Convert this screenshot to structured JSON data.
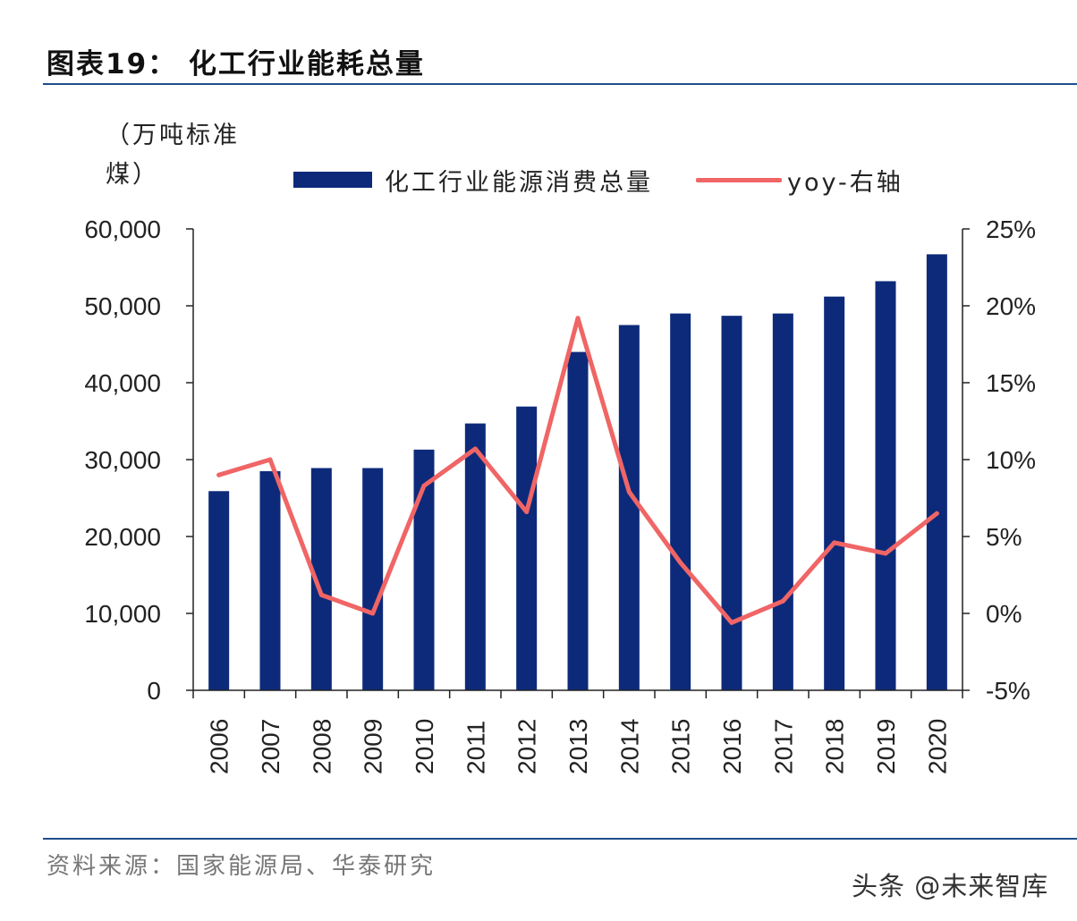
{
  "figure": {
    "title": "图表19： 化工行业能耗总量",
    "unit": "（万吨标准煤）",
    "source": "资料来源：国家能源局、华泰研究",
    "watermark": "头条 @未来智库"
  },
  "colors": {
    "bar": "#0d2a7a",
    "line": "#f06565",
    "axis": "#222222",
    "rule": "#1f4e8c"
  },
  "chart_data": {
    "type": "bar+line",
    "title": "化工行业能耗总量",
    "categories": [
      "2006",
      "2007",
      "2008",
      "2009",
      "2010",
      "2011",
      "2012",
      "2013",
      "2014",
      "2015",
      "2016",
      "2017",
      "2018",
      "2019",
      "2020"
    ],
    "series": [
      {
        "name": "化工行业能源消费总量",
        "type": "bar",
        "axis": "left",
        "values": [
          25900,
          28500,
          28900,
          28900,
          31300,
          34700,
          36900,
          44000,
          47500,
          49000,
          48700,
          49000,
          51200,
          53200,
          56700
        ]
      },
      {
        "name": "yoy-右轴",
        "type": "line",
        "axis": "right",
        "values": [
          9.0,
          10.0,
          1.2,
          0.0,
          8.3,
          10.7,
          6.6,
          19.2,
          7.9,
          3.3,
          -0.6,
          0.8,
          4.6,
          3.9,
          6.5
        ]
      }
    ],
    "y_left": {
      "label": "（万吨标准煤）",
      "ylim": [
        0,
        60000
      ],
      "ticks": [
        "0",
        "10,000",
        "20,000",
        "30,000",
        "40,000",
        "50,000",
        "60,000"
      ]
    },
    "y_right": {
      "ylim": [
        -5,
        25
      ],
      "ticks": [
        "-5%",
        "0%",
        "5%",
        "10%",
        "15%",
        "20%",
        "25%"
      ]
    },
    "legend": {
      "position": "top"
    }
  }
}
